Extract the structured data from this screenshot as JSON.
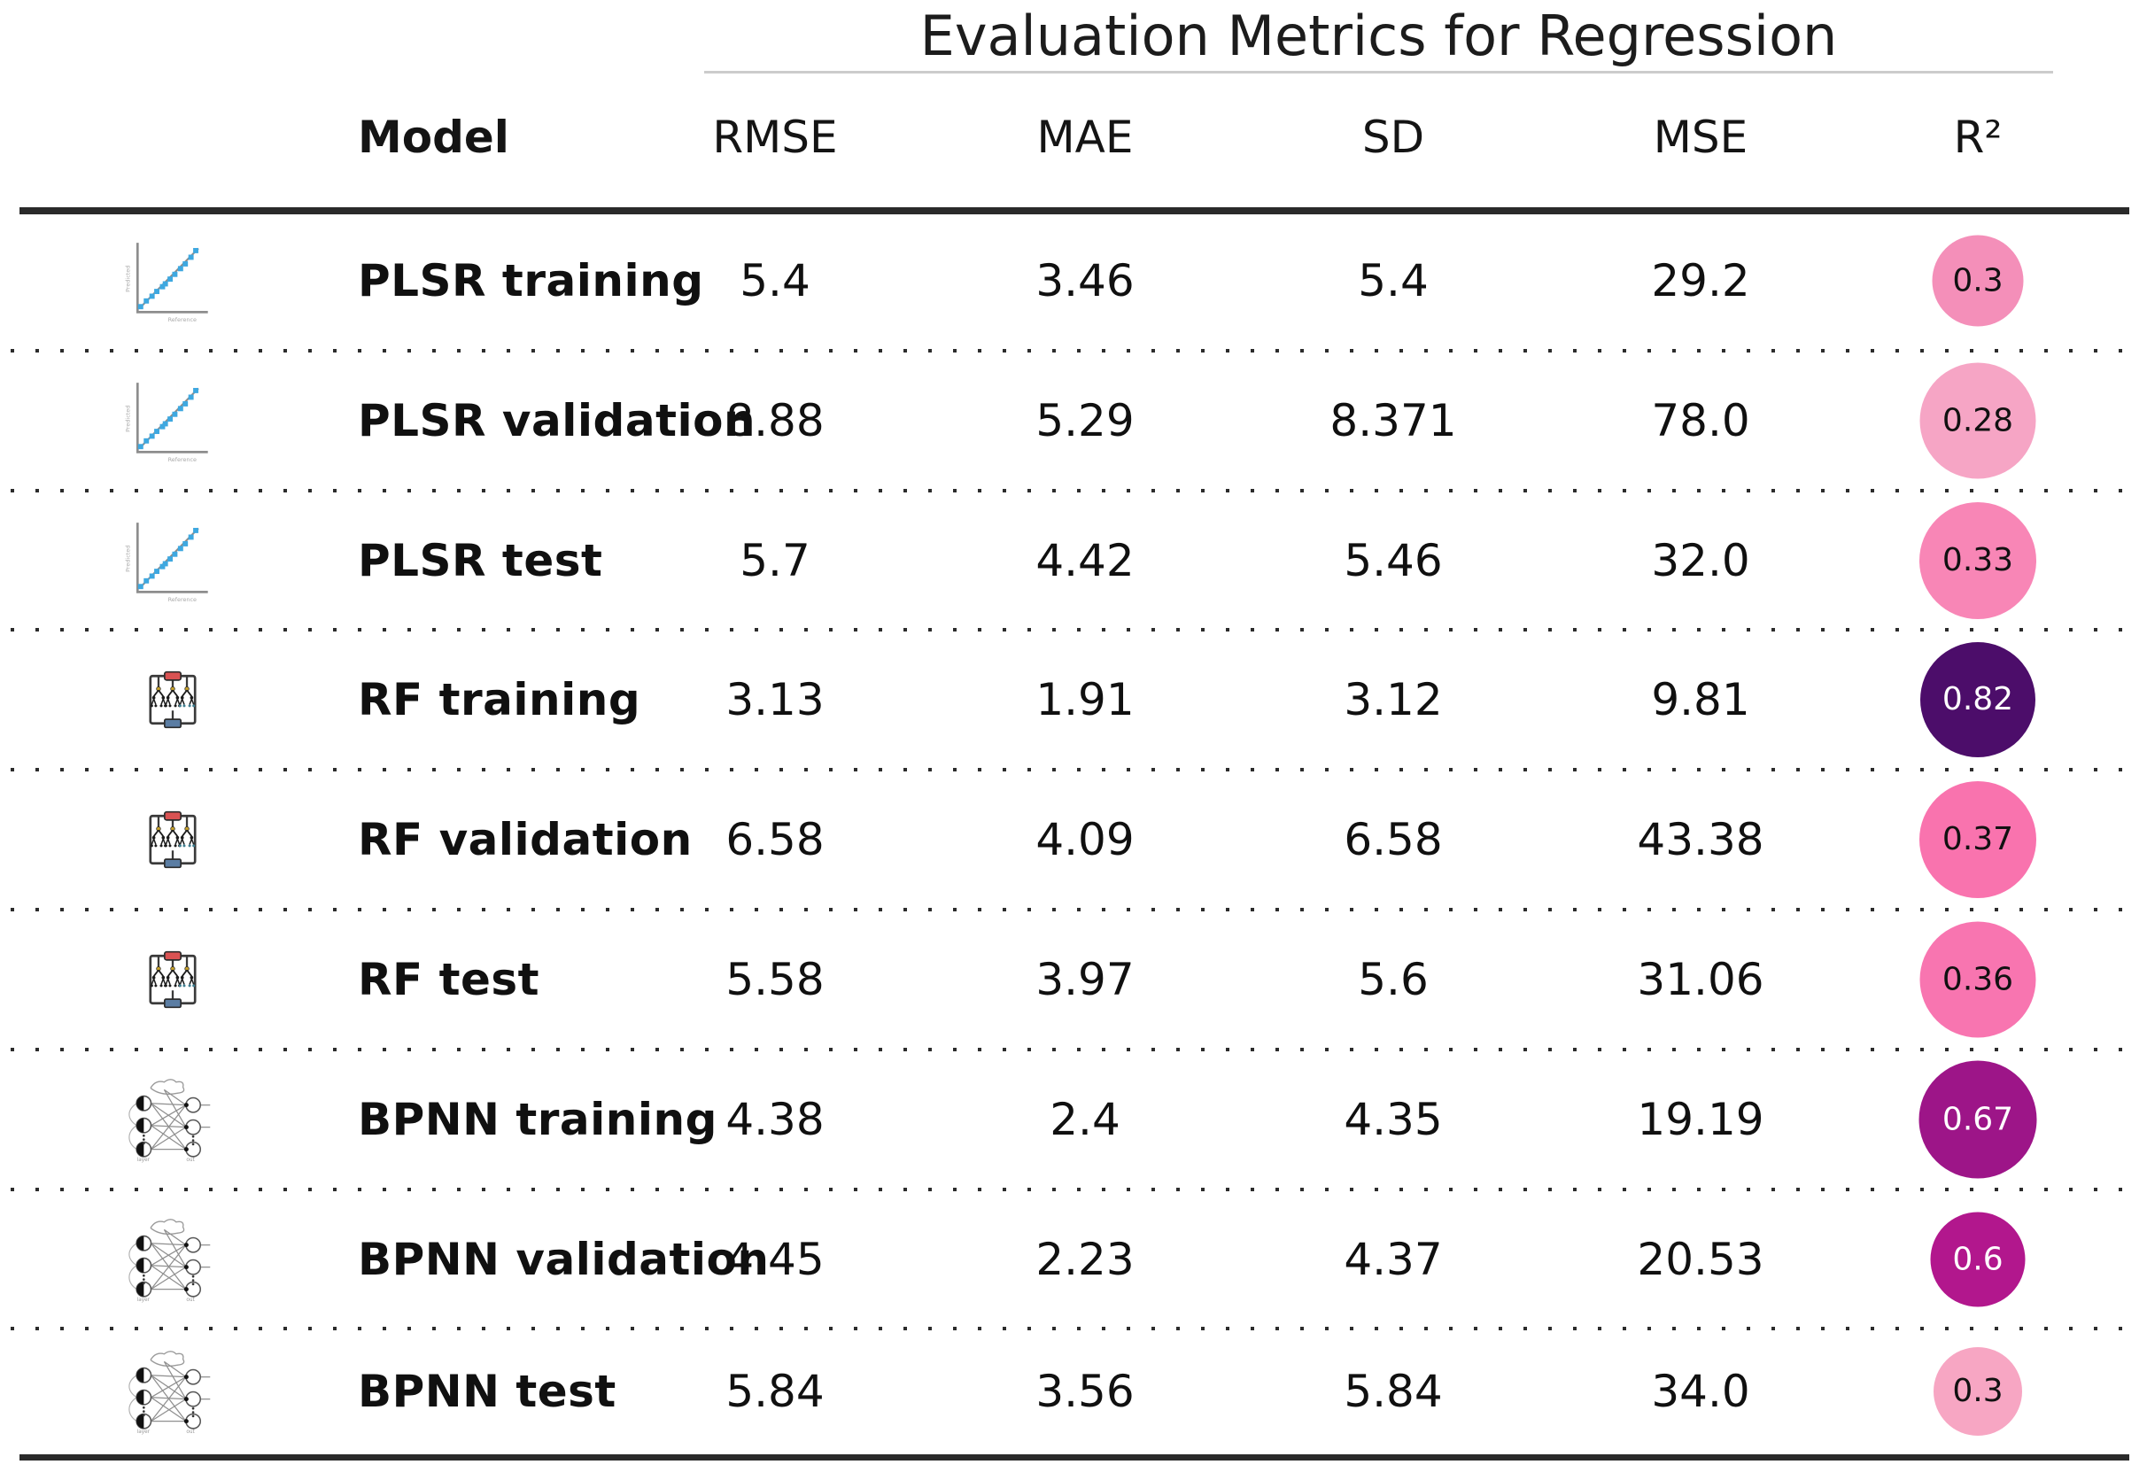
{
  "table": {
    "title": "Evaluation Metrics for Regression",
    "columns": {
      "model": "Model",
      "rmse": "RMSE",
      "mae": "MAE",
      "sd": "SD",
      "mse": "MSE",
      "r2": "R²"
    },
    "rows": [
      {
        "icon": "plsr-scatter-icon",
        "model": "PLSR training",
        "rmse": "5.4",
        "mae": "3.46",
        "sd": "5.4",
        "mse": "29.2",
        "r2": {
          "value": "0.3",
          "bg": "#f48fb9",
          "fg": "#111111",
          "size": 103
        }
      },
      {
        "icon": "plsr-scatter-icon",
        "model": "PLSR validation",
        "rmse": "8.88",
        "mae": "5.29",
        "sd": "8.371",
        "mse": "78.0",
        "r2": {
          "value": "0.28",
          "bg": "#f6a5c5",
          "fg": "#111111",
          "size": 131
        }
      },
      {
        "icon": "plsr-scatter-icon",
        "model": "PLSR test",
        "rmse": "5.7",
        "mae": "4.42",
        "sd": "5.46",
        "mse": "32.0",
        "r2": {
          "value": "0.33",
          "bg": "#f886b6",
          "fg": "#111111",
          "size": 132
        }
      },
      {
        "icon": "rf-forest-icon",
        "model": "RF training",
        "rmse": "3.13",
        "mae": "1.91",
        "sd": "3.12",
        "mse": "9.81",
        "r2": {
          "value": "0.82",
          "bg": "#4c0d6a",
          "fg": "#ffffff",
          "size": 130
        }
      },
      {
        "icon": "rf-forest-icon",
        "model": "RF validation",
        "rmse": "6.58",
        "mae": "4.09",
        "sd": "6.58",
        "mse": "43.38",
        "r2": {
          "value": "0.37",
          "bg": "#f973ae",
          "fg": "#111111",
          "size": 132
        }
      },
      {
        "icon": "rf-forest-icon",
        "model": "RF test",
        "rmse": "5.58",
        "mae": "3.97",
        "sd": "5.6",
        "mse": "31.06",
        "r2": {
          "value": "0.36",
          "bg": "#f875b0",
          "fg": "#111111",
          "size": 131
        }
      },
      {
        "icon": "bpnn-network-icon",
        "model": "BPNN training",
        "rmse": "4.38",
        "mae": "2.4",
        "sd": "4.35",
        "mse": "19.19",
        "r2": {
          "value": "0.67",
          "bg": "#9d1588",
          "fg": "#ffffff",
          "size": 133
        }
      },
      {
        "icon": "bpnn-network-icon",
        "model": "BPNN validation",
        "rmse": "4.45",
        "mae": "2.23",
        "sd": "4.37",
        "mse": "20.53",
        "r2": {
          "value": "0.6",
          "bg": "#b2178d",
          "fg": "#ffffff",
          "size": 107
        }
      },
      {
        "icon": "bpnn-network-icon",
        "model": "BPNN test",
        "rmse": "5.84",
        "mae": "3.56",
        "sd": "5.84",
        "mse": "34.0",
        "r2": {
          "value": "0.3",
          "bg": "#f7a6c3",
          "fg": "#111111",
          "size": 100
        }
      }
    ]
  },
  "chart_data": {
    "type": "table",
    "title": "Evaluation Metrics for Regression",
    "columns": [
      "Model",
      "RMSE",
      "MAE",
      "SD",
      "MSE",
      "R²"
    ],
    "rows": [
      [
        "PLSR training",
        5.4,
        3.46,
        5.4,
        29.2,
        0.3
      ],
      [
        "PLSR validation",
        8.88,
        5.29,
        8.371,
        78.0,
        0.28
      ],
      [
        "PLSR test",
        5.7,
        4.42,
        5.46,
        32.0,
        0.33
      ],
      [
        "RF training",
        3.13,
        1.91,
        3.12,
        9.81,
        0.82
      ],
      [
        "RF validation",
        6.58,
        4.09,
        6.58,
        43.38,
        0.37
      ],
      [
        "RF test",
        5.58,
        3.97,
        5.6,
        31.06,
        0.36
      ],
      [
        "BPNN training",
        4.38,
        2.4,
        4.35,
        19.19,
        0.67
      ],
      [
        "BPNN validation",
        4.45,
        2.23,
        4.37,
        20.53,
        0.6
      ],
      [
        "BPNN test",
        5.84,
        3.56,
        5.84,
        34.0,
        0.3
      ]
    ],
    "legend": "R² column rendered as circles; fill color and size encode the R² value (light pink = low, dark purple = high)",
    "row_groups": [
      "PLSR",
      "RF",
      "BPNN"
    ],
    "grid": "dotted horizontal separators between rows; solid rule under header and at table bottom"
  }
}
